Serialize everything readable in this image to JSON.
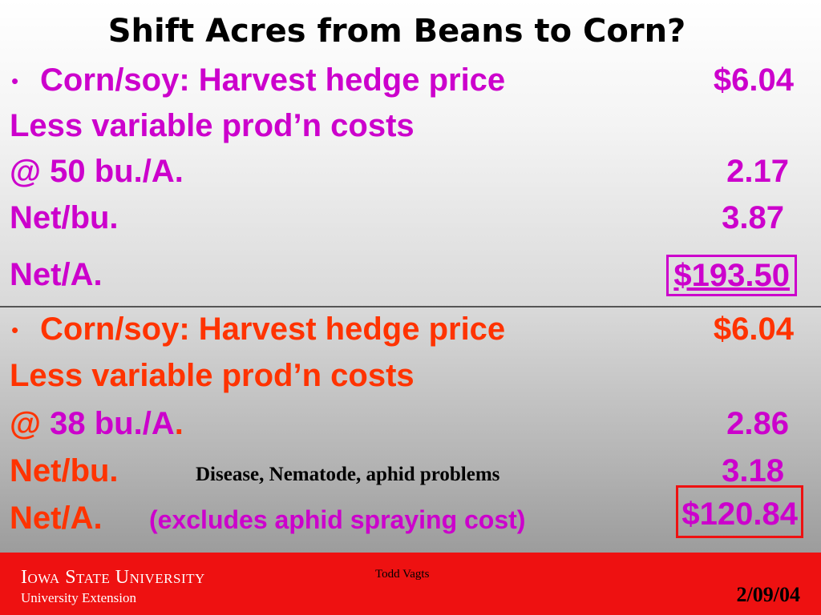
{
  "title": "Shift Acres from Beans to Corn?",
  "section1": {
    "bullet": "•",
    "rows": [
      {
        "label": "Corn/soy: Harvest hedge price",
        "value": "$6.04"
      },
      {
        "label": "Less variable prod’n costs",
        "value": ""
      },
      {
        "label": "@ 50 bu./A.",
        "value": "2.17"
      },
      {
        "label": "Net/bu.",
        "value": "3.87"
      },
      {
        "label": "Net/A.",
        "value": "$193.50"
      }
    ]
  },
  "section2": {
    "bullet": "•",
    "rows": [
      {
        "label": "Corn/soy: Harvest hedge price",
        "value": "$6.04"
      },
      {
        "label": "Less variable prod’n costs",
        "value": ""
      },
      {
        "label_prefix": "@ ",
        "label_highlight": "38 bu./A",
        "label_suffix": ".",
        "value": "2.86"
      },
      {
        "label": "Net/bu.",
        "value": "3.18",
        "note": "Disease, Nematode, aphid problems"
      },
      {
        "label": "Net/A.",
        "value": "$120.84",
        "note": "(excludes aphid spraying cost)"
      }
    ]
  },
  "colors": {
    "section1_text": "#cc00cc",
    "section2_text": "#ff3300",
    "footer_bar": "#ee1111"
  },
  "footer": {
    "university": "Iowa State University",
    "extension": "University Extension",
    "author": "Todd Vagts",
    "date": "2/09/04"
  }
}
